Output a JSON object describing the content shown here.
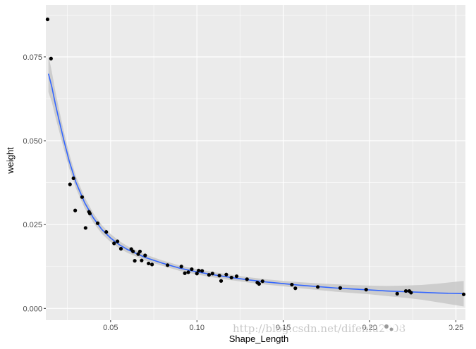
{
  "chart_data": {
    "type": "scatter",
    "title": "",
    "xlabel": "Shape_Length",
    "ylabel": "weight",
    "xlim": [
      0.0125,
      0.2555
    ],
    "ylim": [
      -0.0035,
      0.0905
    ],
    "x_ticks": [
      0.05,
      0.1,
      0.15,
      0.2,
      0.25
    ],
    "x_tick_labels": [
      "0.05",
      "0.10",
      "0.15",
      "0.20",
      "0.25"
    ],
    "y_ticks": [
      0.0,
      0.025,
      0.05,
      0.075
    ],
    "y_tick_labels": [
      "0.000",
      "0.025",
      "0.050",
      "0.075"
    ],
    "grid": true,
    "background": "#ebebeb",
    "grid_color": "#ffffff",
    "point_color": "#000000",
    "smooth_color": "#3366ff",
    "ribbon_color": "#c8c8c8",
    "points": [
      [
        0.0135,
        0.0862
      ],
      [
        0.0155,
        0.0745
      ],
      [
        0.0265,
        0.037
      ],
      [
        0.0285,
        0.0388
      ],
      [
        0.0295,
        0.0292
      ],
      [
        0.0335,
        0.0332
      ],
      [
        0.0355,
        0.024
      ],
      [
        0.0375,
        0.0288
      ],
      [
        0.038,
        0.0283
      ],
      [
        0.0425,
        0.0254
      ],
      [
        0.0475,
        0.0228
      ],
      [
        0.052,
        0.0194
      ],
      [
        0.054,
        0.02
      ],
      [
        0.056,
        0.0178
      ],
      [
        0.062,
        0.0177
      ],
      [
        0.063,
        0.017
      ],
      [
        0.064,
        0.0142
      ],
      [
        0.066,
        0.0162
      ],
      [
        0.067,
        0.017
      ],
      [
        0.068,
        0.0143
      ],
      [
        0.07,
        0.0158
      ],
      [
        0.072,
        0.0134
      ],
      [
        0.074,
        0.0131
      ],
      [
        0.083,
        0.0129
      ],
      [
        0.091,
        0.0125
      ],
      [
        0.093,
        0.0105
      ],
      [
        0.095,
        0.0108
      ],
      [
        0.097,
        0.0117
      ],
      [
        0.1,
        0.0104
      ],
      [
        0.101,
        0.0113
      ],
      [
        0.103,
        0.0112
      ],
      [
        0.107,
        0.01
      ],
      [
        0.109,
        0.0104
      ],
      [
        0.113,
        0.0098
      ],
      [
        0.114,
        0.0082
      ],
      [
        0.117,
        0.0101
      ],
      [
        0.12,
        0.0092
      ],
      [
        0.123,
        0.0096
      ],
      [
        0.129,
        0.0087
      ],
      [
        0.135,
        0.0077
      ],
      [
        0.136,
        0.0073
      ],
      [
        0.138,
        0.0081
      ],
      [
        0.155,
        0.0071
      ],
      [
        0.157,
        0.006
      ],
      [
        0.17,
        0.0064
      ],
      [
        0.183,
        0.0061
      ],
      [
        0.198,
        0.0056
      ],
      [
        0.216,
        0.0044
      ],
      [
        0.221,
        0.0052
      ],
      [
        0.223,
        0.0052
      ],
      [
        0.224,
        0.0047
      ],
      [
        0.2545,
        0.0042
      ]
    ],
    "smooth": {
      "x": [
        0.014,
        0.016,
        0.018,
        0.02,
        0.023,
        0.026,
        0.03,
        0.035,
        0.04,
        0.045,
        0.05,
        0.055,
        0.06,
        0.07,
        0.08,
        0.09,
        0.1,
        0.11,
        0.12,
        0.13,
        0.14,
        0.15,
        0.16,
        0.17,
        0.18,
        0.19,
        0.2,
        0.21,
        0.22,
        0.23,
        0.24,
        0.2545
      ],
      "y": [
        0.07,
        0.066,
        0.061,
        0.0565,
        0.05,
        0.044,
        0.0375,
        0.0315,
        0.027,
        0.0235,
        0.021,
        0.019,
        0.0175,
        0.0152,
        0.0135,
        0.012,
        0.0109,
        0.01,
        0.0092,
        0.0085,
        0.0079,
        0.0074,
        0.0069,
        0.0065,
        0.0061,
        0.0058,
        0.0055,
        0.0052,
        0.005,
        0.0048,
        0.0046,
        0.0044
      ],
      "se": [
        0.0055,
        0.0045,
        0.0038,
        0.0032,
        0.0026,
        0.0022,
        0.0018,
        0.0016,
        0.0014,
        0.0013,
        0.0012,
        0.0011,
        0.001,
        0.0009,
        0.0008,
        0.0008,
        0.0008,
        0.0008,
        0.0008,
        0.0008,
        0.0008,
        0.0008,
        0.0009,
        0.001,
        0.0011,
        0.0012,
        0.0013,
        0.0015,
        0.0018,
        0.0022,
        0.0028,
        0.0038
      ]
    }
  },
  "watermark": {
    "url_text": "http://blog.csdn.net/difenlu2008",
    "brand_text": "虾神daxialu"
  }
}
